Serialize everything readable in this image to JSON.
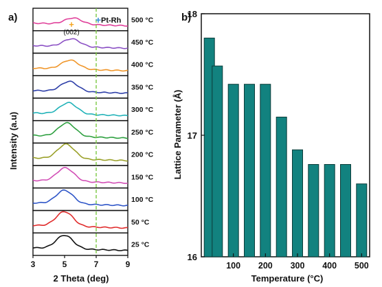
{
  "panel_a": {
    "label": "a)",
    "ylabel": "Intensity (a.u)",
    "xlabel": "2 Theta (deg)",
    "peak_label": "(002)",
    "ref_label": "Pt-Rh",
    "ref_marker": "+",
    "peak_marker": "+"
  },
  "panel_b": {
    "label": "b)",
    "ylabel": "Lattice Parameter (Å)",
    "xlabel": "Temperature (°C)"
  },
  "colors": {
    "bar_fill": "#12827f",
    "bar_stroke": "#0c3b38",
    "ref_line": "#7ac943",
    "peak_marker": "#f5a623",
    "ref_marker": "#3a8fd8"
  },
  "chart_data": [
    {
      "type": "line",
      "title": "",
      "xlabel": "2 Theta (deg)",
      "ylabel": "Intensity (a.u)",
      "xlim": [
        3,
        9
      ],
      "xticks": [
        3,
        5,
        7,
        9
      ],
      "ref_line_x": 7.0,
      "peak_label_x": 5.5,
      "series": [
        {
          "name": "500 °C",
          "color": "#e0409a",
          "peak_x": 5.55,
          "peak_h": 0.28
        },
        {
          "name": "450 °C",
          "color": "#8a4fc4",
          "peak_x": 5.45,
          "peak_h": 0.35
        },
        {
          "name": "400 °C",
          "color": "#f0962a",
          "peak_x": 5.35,
          "peak_h": 0.4
        },
        {
          "name": "350 °C",
          "color": "#2e3fa8",
          "peak_x": 5.3,
          "peak_h": 0.45
        },
        {
          "name": "300 °C",
          "color": "#20b2b8",
          "peak_x": 5.25,
          "peak_h": 0.5
        },
        {
          "name": "250 °C",
          "color": "#2ea040",
          "peak_x": 5.15,
          "peak_h": 0.6
        },
        {
          "name": "200 °C",
          "color": "#9aa028",
          "peak_x": 5.1,
          "peak_h": 0.65
        },
        {
          "name": "150 °C",
          "color": "#d24fb6",
          "peak_x": 5.05,
          "peak_h": 0.6
        },
        {
          "name": "100 °C",
          "color": "#2f56c8",
          "peak_x": 5.0,
          "peak_h": 0.6
        },
        {
          "name": "50 °C",
          "color": "#e02a2a",
          "peak_x": 5.0,
          "peak_h": 0.65
        },
        {
          "name": "25 °C",
          "color": "#111111",
          "peak_x": 5.0,
          "peak_h": 0.6
        }
      ]
    },
    {
      "type": "bar",
      "title": "",
      "xlabel": "Temperature (°C)",
      "ylabel": "Lattice Parameter (Å)",
      "ylim": [
        16,
        18
      ],
      "yticks": [
        16,
        17,
        18
      ],
      "xlim": [
        0,
        525
      ],
      "xticks": [
        100,
        200,
        300,
        400,
        500
      ],
      "x": [
        25,
        50,
        100,
        150,
        200,
        250,
        300,
        350,
        400,
        450,
        500
      ],
      "values": [
        17.8,
        17.57,
        17.42,
        17.42,
        17.42,
        17.15,
        16.88,
        16.76,
        16.76,
        16.76,
        16.6
      ]
    }
  ]
}
